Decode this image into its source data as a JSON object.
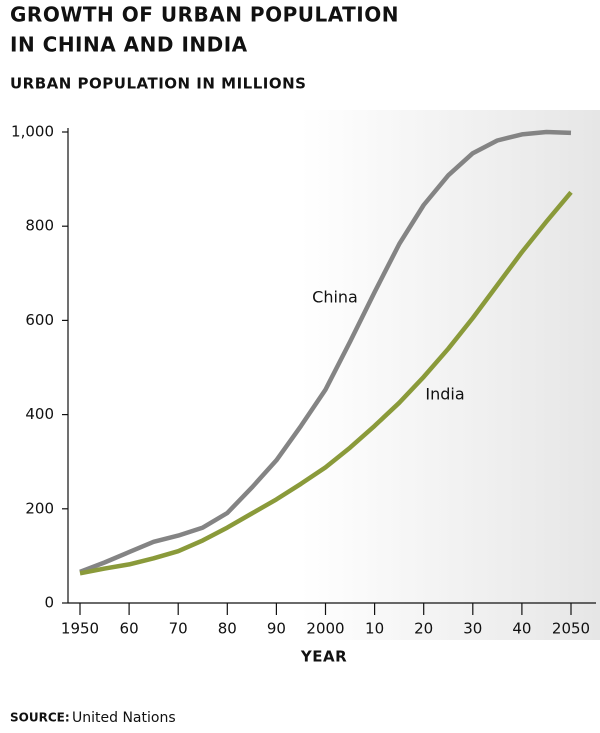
{
  "chart_data": {
    "type": "line",
    "title": [
      "GROWTH OF URBAN POPULATION",
      "IN CHINA AND INDIA"
    ],
    "subtitle": "URBAN POPULATION IN MILLIONS",
    "x_label": "YEAR",
    "x": [
      1950,
      1955,
      1960,
      1965,
      1970,
      1975,
      1980,
      1985,
      1990,
      1995,
      2000,
      2005,
      2010,
      2015,
      2020,
      2025,
      2030,
      2035,
      2040,
      2045,
      2050
    ],
    "series": [
      {
        "name": "China",
        "color": "#848484",
        "values": [
          66,
          86,
          108,
          130,
          143,
          160,
          191,
          245,
          303,
          376,
          453,
          555,
          660,
          762,
          845,
          908,
          955,
          982,
          995,
          1000,
          998
        ]
      },
      {
        "name": "India",
        "color": "#8a9a3a",
        "values": [
          63,
          73,
          82,
          95,
          110,
          133,
          160,
          190,
          220,
          253,
          288,
          330,
          376,
          425,
          480,
          540,
          605,
          675,
          745,
          810,
          872
        ]
      }
    ],
    "xlim": [
      1950,
      2050
    ],
    "xticks": [
      1950,
      {
        "value": 1960,
        "label": "60"
      },
      {
        "value": 1970,
        "label": "70"
      },
      {
        "value": 1980,
        "label": "80"
      },
      {
        "value": 1990,
        "label": "90"
      },
      2000,
      {
        "value": 2010,
        "label": "10"
      },
      {
        "value": 2020,
        "label": "20"
      },
      {
        "value": 2030,
        "label": "30"
      },
      {
        "value": 2040,
        "label": "40"
      },
      2050
    ],
    "ylim": [
      0,
      1000
    ],
    "yticks": [
      0,
      200,
      400,
      600,
      800,
      {
        "value": 1000,
        "label": "1,000"
      }
    ],
    "grid": false,
    "source_label": "SOURCE:",
    "source": "United Nations"
  }
}
